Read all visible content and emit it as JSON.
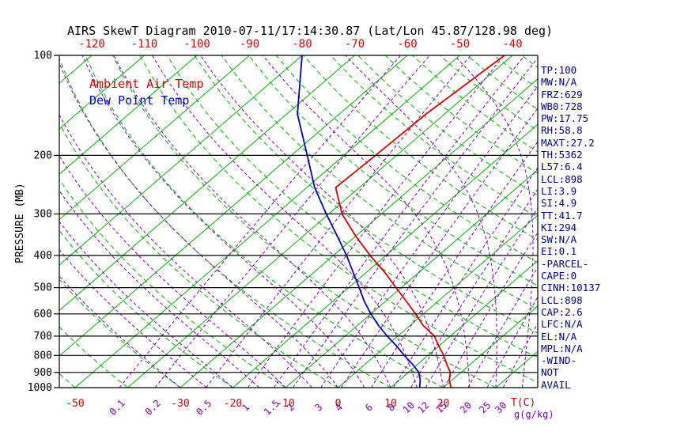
{
  "title": "AIRS SkewT Diagram 2010-07-11/17:14:30.87 (Lat/Lon 45.87/128.98 deg)",
  "legend": {
    "ambient": "Ambient Air Temp",
    "dew": "Dew Point Temp"
  },
  "axes": {
    "y_label": "PRESSURE (MB)",
    "pressure_ticks": [
      100,
      200,
      300,
      400,
      500,
      600,
      700,
      800,
      900,
      1000
    ],
    "top_temp_ticks": [
      -120,
      -110,
      -100,
      -90,
      -80,
      -70,
      -60,
      -50,
      -40
    ],
    "bottom_temp_ticks": [
      -50,
      -30,
      -20,
      -10,
      0,
      10,
      20
    ],
    "bottom_temp_unit": "T(C)",
    "mixing_ratio_ticks": [
      0.1,
      0.2,
      0.5,
      1,
      1.5,
      2,
      3,
      4,
      6,
      8,
      10,
      12,
      15,
      20,
      25,
      30
    ],
    "mixing_ratio_unit": "g(g/kg)"
  },
  "stats": [
    "TP:100",
    "MW:N/A",
    "FRZ:629",
    "WB0:728",
    "PW:17.75",
    "RH:58.8",
    "MAXT:27.2",
    "TH:5362",
    "L57:6.4",
    "LCL:898",
    "LI:3.9",
    "SI:4.9",
    "TT:41.7",
    "KI:294",
    "SW:N/A",
    "EI:0.1",
    "-PARCEL-",
    "CAPE:0",
    "CINH:10137",
    "LCL:898",
    "CAP:2.6",
    "LFC:N/A",
    "EL:N/A",
    "MPL:N/A",
    "-WIND-",
    "NOT",
    "AVAIL"
  ],
  "colors": {
    "temp": "#dd0000",
    "dew": "#0000cc",
    "stats": "#000090",
    "grid_green": "#00b400",
    "grid_purple": "#8000c0",
    "mixing": "#8000c0",
    "axis": "#000000"
  },
  "chart_data": {
    "type": "line",
    "subtype": "skew-t-log-p",
    "title": "AIRS SkewT Diagram 2010-07-11/17:14:30.87 (Lat/Lon 45.87/128.98 deg)",
    "xlabel": "T(C)",
    "ylabel": "PRESSURE (MB)",
    "y_axis": {
      "scale": "log",
      "range_mb": [
        100,
        1000
      ]
    },
    "x_axis": {
      "surface_range_c": [
        -53,
        38
      ],
      "top_label_range_c": [
        -120,
        -40
      ],
      "skew_deg": 45
    },
    "legend_position": "top-left",
    "series": [
      {
        "name": "Ambient Air Temp",
        "color": "#dd0000",
        "pressure_mb": [
          1000,
          950,
          900,
          850,
          800,
          750,
          700,
          650,
          600,
          550,
          500,
          450,
          400,
          350,
          300,
          250,
          200,
          150,
          100
        ],
        "temperature_c": [
          21.5,
          19.5,
          18,
          15.5,
          13,
          10,
          7,
          2.5,
          -1.5,
          -6,
          -11,
          -16.5,
          -23,
          -30,
          -37.5,
          -44.5,
          -44,
          -43.5,
          -41.5
        ]
      },
      {
        "name": "Dew Point Temp",
        "color": "#0000cc",
        "pressure_mb": [
          1000,
          950,
          900,
          850,
          800,
          750,
          700,
          650,
          600,
          550,
          500,
          450,
          400,
          350,
          300,
          250,
          200,
          150,
          100
        ],
        "temperature_c": [
          15.5,
          14,
          12,
          9,
          5.5,
          2,
          -2,
          -6,
          -10,
          -14,
          -18,
          -22.5,
          -27.5,
          -33.5,
          -40.5,
          -48.5,
          -57,
          -68,
          -80
        ]
      }
    ],
    "grid": {
      "isotherms_c": [
        -120,
        -110,
        -100,
        -90,
        -80,
        -70,
        -60,
        -50,
        -40,
        -30,
        -20,
        -10,
        0,
        10,
        20,
        30,
        40
      ],
      "dry_adiabats_theta_c": [
        -50,
        -40,
        -30,
        -20,
        -10,
        0,
        10,
        20,
        30,
        40,
        50,
        60,
        70,
        80,
        90,
        100,
        110,
        120,
        130,
        140,
        150,
        160,
        170,
        180
      ],
      "moist_adiabats_c": [
        -30,
        -25,
        -20,
        -15,
        -10,
        -5,
        0,
        5,
        10,
        15,
        20,
        25,
        30,
        35
      ]
    }
  }
}
